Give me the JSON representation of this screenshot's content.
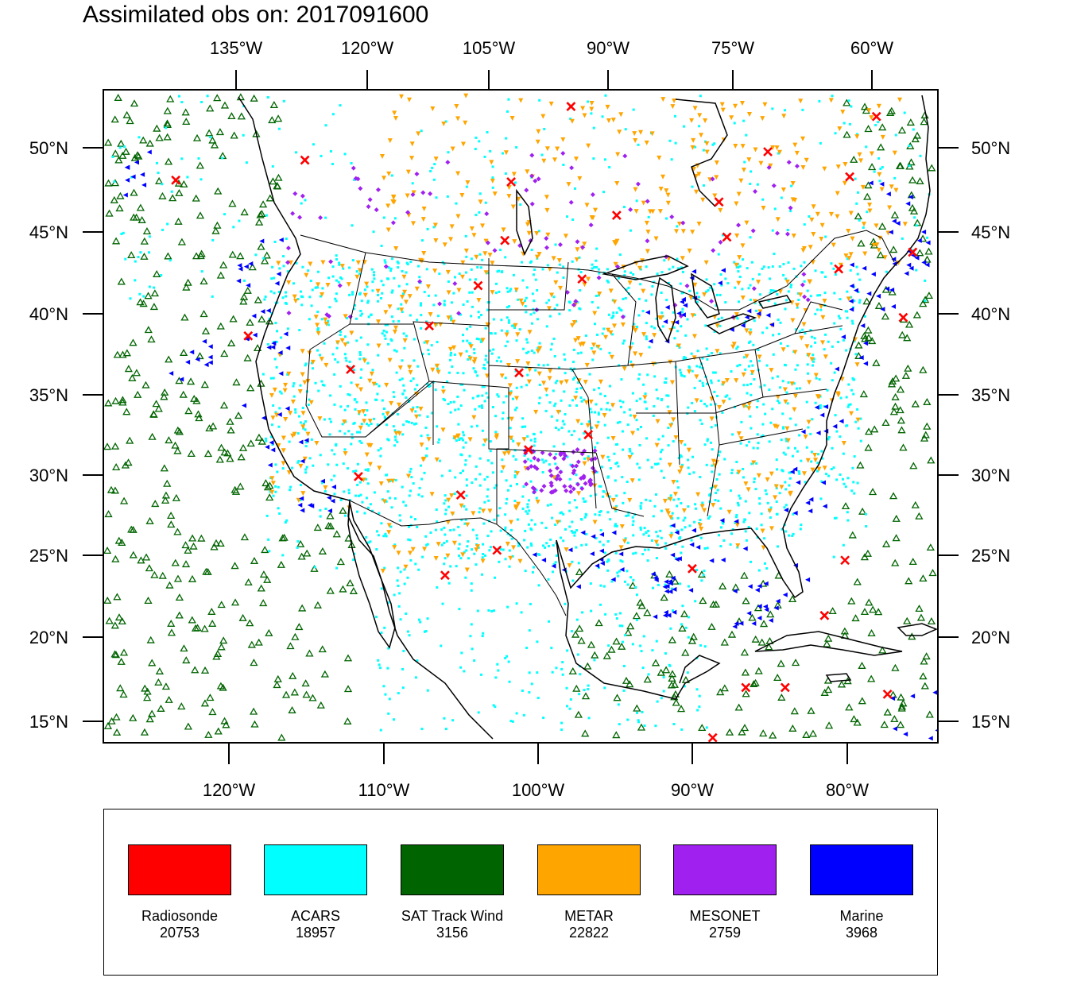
{
  "title": "Assimilated obs on: 2017091600",
  "axes": {
    "top_lon_labels": [
      "135°W",
      "120°W",
      "105°W",
      "90°W",
      "75°W",
      "60°W"
    ],
    "bottom_lon_labels": [
      "120°W",
      "110°W",
      "100°W",
      "90°W",
      "80°W"
    ],
    "lat_labels": [
      "50°N",
      "45°N",
      "40°N",
      "35°N",
      "30°N",
      "25°N",
      "20°N",
      "15°N"
    ]
  },
  "legend": [
    {
      "label": "Radiosonde",
      "count": "20753",
      "color": "#ff0000",
      "marker": "x-cross"
    },
    {
      "label": "ACARS",
      "count": "18957",
      "color": "#00ffff",
      "marker": "dot"
    },
    {
      "label": "SAT Track Wind",
      "count": "3156",
      "color": "#006400",
      "marker": "triangle-up-hollow"
    },
    {
      "label": "METAR",
      "count": "22822",
      "color": "#ffa500",
      "marker": "triangle-down"
    },
    {
      "label": "MESONET",
      "count": "2759",
      "color": "#a020f0",
      "marker": "diamond"
    },
    {
      "label": "Marine",
      "count": "3968",
      "color": "#0000ff",
      "marker": "triangle-left"
    }
  ],
  "map": {
    "region": "North America (continental US, Gulf of Mexico, Caribbean)",
    "lon_range": [
      -127,
      -74
    ],
    "lat_range": [
      14,
      53
    ],
    "radiosonde_sites": [
      [
        -114.2,
        48.8
      ],
      [
        -101.1,
        47.5
      ],
      [
        -97.3,
        52.0
      ],
      [
        -94.4,
        45.5
      ],
      [
        -87.9,
        46.3
      ],
      [
        -84.8,
        49.3
      ],
      [
        -79.6,
        47.8
      ],
      [
        -77.9,
        51.4
      ],
      [
        -122.4,
        47.6
      ],
      [
        -117.8,
        38.3
      ],
      [
        -111.3,
        36.3
      ],
      [
        -106.3,
        38.9
      ],
      [
        -103.2,
        41.3
      ],
      [
        -101.5,
        44.0
      ],
      [
        -96.6,
        41.7
      ],
      [
        -100.6,
        36.1
      ],
      [
        -96.2,
        32.4
      ],
      [
        -100.0,
        31.5
      ],
      [
        -104.3,
        28.8
      ],
      [
        -110.8,
        29.9
      ],
      [
        -102.0,
        25.5
      ],
      [
        -105.3,
        24.0
      ],
      [
        -87.4,
        44.2
      ],
      [
        -80.3,
        42.3
      ],
      [
        -76.2,
        39.4
      ],
      [
        -75.6,
        43.3
      ],
      [
        -89.6,
        24.4
      ],
      [
        -79.9,
        24.9
      ],
      [
        -81.2,
        21.6
      ],
      [
        -83.7,
        17.3
      ],
      [
        -77.2,
        16.9
      ],
      [
        -88.3,
        14.3
      ],
      [
        -86.2,
        17.3
      ]
    ]
  }
}
